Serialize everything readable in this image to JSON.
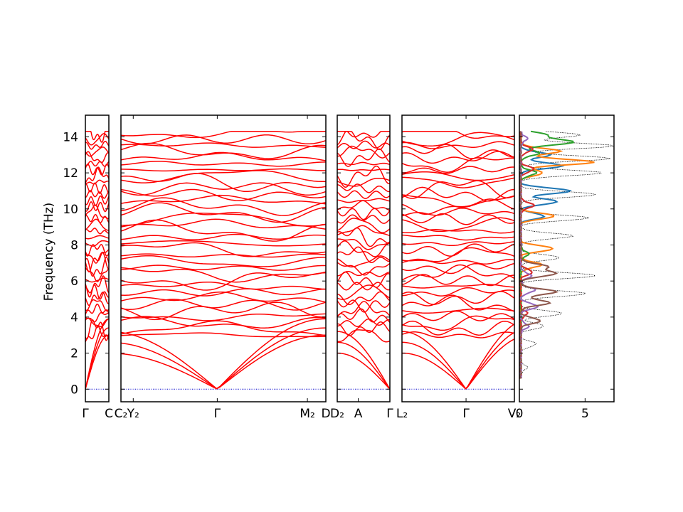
{
  "chart_data": {
    "type": "line",
    "title": "",
    "ylabel": "Frequency (THz)",
    "ylim": [
      -0.7,
      15.2
    ],
    "yticks": [
      0,
      2,
      4,
      6,
      8,
      10,
      12,
      14
    ],
    "zero_line_color": "#0000cc",
    "band_color": "#ff0000",
    "panels": [
      {
        "id": "p1",
        "kind": "bands",
        "tick_labels": [
          "Γ",
          "C"
        ],
        "tick_fracs": [
          0,
          1
        ]
      },
      {
        "id": "p2",
        "kind": "bands",
        "tick_labels": [
          "C₂",
          "Y₂",
          "Γ",
          "M₂",
          "D"
        ],
        "tick_fracs": [
          0,
          0.06,
          0.47,
          0.91,
          1
        ]
      },
      {
        "id": "p3",
        "kind": "bands",
        "tick_labels": [
          "D₂",
          "A",
          "Γ"
        ],
        "tick_fracs": [
          0,
          0.4,
          1
        ]
      },
      {
        "id": "p4",
        "kind": "bands",
        "tick_labels": [
          "L₂",
          "Γ",
          "V₂"
        ],
        "tick_fracs": [
          0,
          0.57,
          1
        ]
      },
      {
        "id": "p5",
        "kind": "dos",
        "xticks": [
          "0",
          "5"
        ],
        "xlim": [
          0,
          7.2
        ]
      }
    ],
    "dos_series": [
      {
        "color": "#000000",
        "peaks": [
          [
            1.2,
            0.5
          ],
          [
            2.5,
            1.2
          ],
          [
            3.5,
            1.8
          ],
          [
            4.2,
            3.2
          ],
          [
            5.3,
            5.0
          ],
          [
            6.3,
            5.8
          ],
          [
            7.3,
            3.0
          ],
          [
            8.5,
            4.0
          ],
          [
            9.5,
            5.2
          ],
          [
            10.8,
            5.8
          ],
          [
            12.0,
            6.2
          ],
          [
            12.8,
            6.8
          ],
          [
            13.5,
            7.1
          ],
          [
            14.1,
            4.5
          ]
        ]
      },
      {
        "color": "#1f77b4",
        "peaks": [
          [
            9.6,
            1.8
          ],
          [
            10.4,
            2.8
          ],
          [
            11.0,
            3.8
          ],
          [
            12.4,
            3.2
          ],
          [
            13.0,
            2.2
          ]
        ]
      },
      {
        "color": "#ff7f0e",
        "peaks": [
          [
            6.9,
            1.6
          ],
          [
            7.8,
            2.5
          ],
          [
            9.6,
            2.6
          ],
          [
            12.0,
            1.7
          ],
          [
            12.6,
            5.6
          ],
          [
            13.2,
            3.0
          ]
        ]
      },
      {
        "color": "#2ca02c",
        "peaks": [
          [
            7.5,
            0.6
          ],
          [
            12.0,
            1.2
          ],
          [
            13.1,
            1.4
          ],
          [
            13.7,
            4.0
          ],
          [
            14.1,
            1.9
          ]
        ]
      },
      {
        "color": "#d62728",
        "peaks": [
          [
            4.2,
            0.5
          ],
          [
            6.5,
            0.9
          ],
          [
            10.2,
            1.0
          ],
          [
            12.2,
            1.0
          ],
          [
            13.3,
            0.9
          ]
        ]
      },
      {
        "color": "#9467bd",
        "peaks": [
          [
            3.5,
            0.6
          ],
          [
            4.6,
            1.3
          ],
          [
            5.5,
            1.1
          ],
          [
            6.3,
            0.8
          ],
          [
            13.9,
            0.5
          ]
        ]
      },
      {
        "color": "#8c564b",
        "peaks": [
          [
            3.8,
            1.5
          ],
          [
            4.8,
            2.2
          ],
          [
            5.4,
            2.7
          ],
          [
            6.4,
            2.6
          ],
          [
            6.8,
            2.0
          ]
        ]
      }
    ]
  }
}
